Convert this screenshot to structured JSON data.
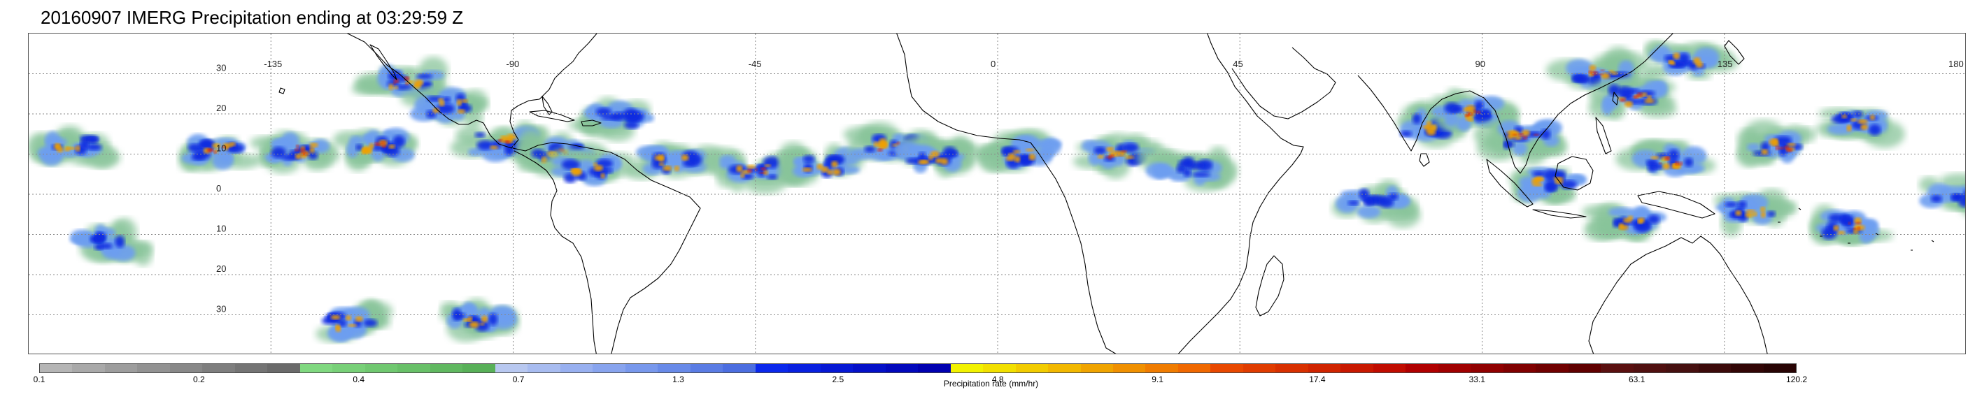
{
  "title": "20160907 IMERG Precipitation ending at 03:29:59 Z",
  "map": {
    "projection": "equirectangular",
    "lon_range": [
      -180,
      180
    ],
    "lat_range": [
      -40,
      40
    ],
    "grid": true,
    "lat_labels": [
      {
        "value": 30,
        "label": "30"
      },
      {
        "value": 20,
        "label": "20"
      },
      {
        "value": 10,
        "label": "10"
      },
      {
        "value": 0,
        "label": "0"
      },
      {
        "value": -10,
        "label": "10"
      },
      {
        "value": -20,
        "label": "20"
      },
      {
        "value": -30,
        "label": "30"
      }
    ],
    "lon_labels": [
      {
        "value": -135,
        "label": "-135"
      },
      {
        "value": -90,
        "label": "-90"
      },
      {
        "value": -45,
        "label": "-45"
      },
      {
        "value": 0,
        "label": "0"
      },
      {
        "value": 45,
        "label": "45"
      },
      {
        "value": 90,
        "label": "90"
      },
      {
        "value": 135,
        "label": "135"
      },
      {
        "value": 180,
        "label": "180"
      }
    ],
    "coastline_color": "#000000",
    "grid_color": "#888888"
  },
  "precip_systems": [
    {
      "lon": -172,
      "lat": 12,
      "intensity": 3
    },
    {
      "lon": -145,
      "lat": 11,
      "intensity": 4
    },
    {
      "lon": -130,
      "lat": 11,
      "intensity": 4
    },
    {
      "lon": -115,
      "lat": 12,
      "intensity": 4
    },
    {
      "lon": -110,
      "lat": 28,
      "intensity": 4
    },
    {
      "lon": -102,
      "lat": 22,
      "intensity": 3
    },
    {
      "lon": -92,
      "lat": 13,
      "intensity": 4
    },
    {
      "lon": -82,
      "lat": 10,
      "intensity": 4
    },
    {
      "lon": -76,
      "lat": 6,
      "intensity": 3
    },
    {
      "lon": -70,
      "lat": 19,
      "intensity": 2
    },
    {
      "lon": -60,
      "lat": 8,
      "intensity": 3
    },
    {
      "lon": -45,
      "lat": 6,
      "intensity": 4
    },
    {
      "lon": -33,
      "lat": 7,
      "intensity": 3
    },
    {
      "lon": -20,
      "lat": 12,
      "intensity": 4
    },
    {
      "lon": -12,
      "lat": 9,
      "intensity": 3
    },
    {
      "lon": 5,
      "lat": 10,
      "intensity": 3
    },
    {
      "lon": 22,
      "lat": 10,
      "intensity": 4
    },
    {
      "lon": 35,
      "lat": 6,
      "intensity": 2
    },
    {
      "lon": 70,
      "lat": -2,
      "intensity": 2
    },
    {
      "lon": 80,
      "lat": 17,
      "intensity": 3
    },
    {
      "lon": 88,
      "lat": 20,
      "intensity": 4
    },
    {
      "lon": 98,
      "lat": 14,
      "intensity": 4
    },
    {
      "lon": 103,
      "lat": 3,
      "intensity": 3
    },
    {
      "lon": 112,
      "lat": 30,
      "intensity": 4
    },
    {
      "lon": 118,
      "lat": 24,
      "intensity": 4
    },
    {
      "lon": 128,
      "lat": 33,
      "intensity": 3
    },
    {
      "lon": 125,
      "lat": 8,
      "intensity": 4
    },
    {
      "lon": 145,
      "lat": 12,
      "intensity": 4
    },
    {
      "lon": 160,
      "lat": 18,
      "intensity": 3
    },
    {
      "lon": 158,
      "lat": -8,
      "intensity": 4
    },
    {
      "lon": 178,
      "lat": 0,
      "intensity": 2
    },
    {
      "lon": -165,
      "lat": -12,
      "intensity": 2
    },
    {
      "lon": -120,
      "lat": -32,
      "intensity": 3
    },
    {
      "lon": -97,
      "lat": -31,
      "intensity": 3
    },
    {
      "lon": 118,
      "lat": -7,
      "intensity": 3
    },
    {
      "lon": 140,
      "lat": -4,
      "intensity": 3
    }
  ],
  "legend": {
    "label": "Precipitation rate (mm/hr)",
    "colors": [
      "#b5b5b5",
      "#a9a9a9",
      "#9d9d9d",
      "#929292",
      "#888888",
      "#7e7e7e",
      "#747474",
      "#6a6a6a",
      "#80d880",
      "#78d078",
      "#70c870",
      "#68c068",
      "#60b860",
      "#58b058",
      "#b8c8f0",
      "#a8bcf0",
      "#98b0f0",
      "#88a4ee",
      "#7898ec",
      "#688ae8",
      "#5a7ce4",
      "#4c6ee0",
      "#0a28ec",
      "#0820e0",
      "#0618d4",
      "#0410c8",
      "#0208bc",
      "#0000b0",
      "#f2f200",
      "#f2e000",
      "#f2cc00",
      "#f2b800",
      "#f0a400",
      "#f09000",
      "#f07c00",
      "#f06800",
      "#e84800",
      "#e03c00",
      "#d83000",
      "#d02400",
      "#c81800",
      "#c00c00",
      "#b00000",
      "#a00000",
      "#900000",
      "#800000",
      "#700000",
      "#600000",
      "#5a1010",
      "#501010",
      "#461010",
      "#3c0a0a",
      "#320606",
      "#280404"
    ],
    "tick_labels": [
      "0.1",
      "0.2",
      "0.4",
      "0.7",
      "1.3",
      "2.5",
      "4.8",
      "9.1",
      "17.4",
      "33.1",
      "63.1",
      "120.2"
    ]
  }
}
